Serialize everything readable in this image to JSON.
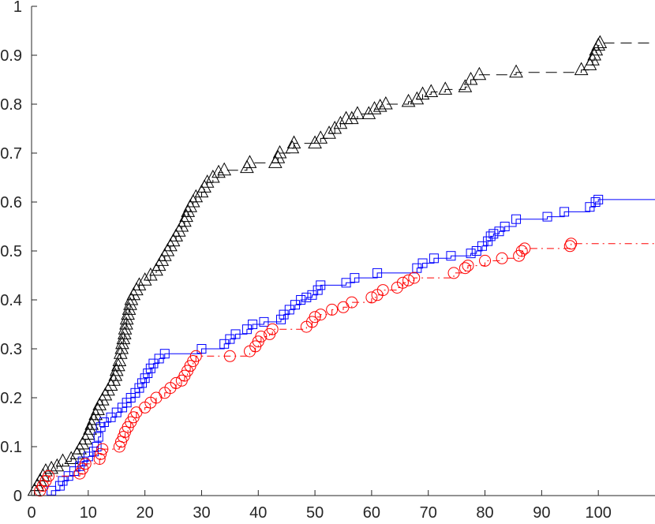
{
  "chart_data": {
    "type": "line",
    "style": "stairs",
    "title": "",
    "xlabel": "",
    "ylabel": "",
    "xlim": [
      0,
      110
    ],
    "ylim": [
      0,
      1
    ],
    "grid": false,
    "legend": "none",
    "xticks": [
      "0",
      "10",
      "20",
      "30",
      "40",
      "50",
      "60",
      "70",
      "80",
      "90",
      "100"
    ],
    "yticks": [
      "0",
      "0.1",
      "0.2",
      "0.3",
      "0.4",
      "0.5",
      "0.6",
      "0.7",
      "0.8",
      "0.9",
      "1"
    ],
    "series": [
      {
        "color": "#000000",
        "line_style": "dashed",
        "marker": "triangle",
        "end_x": 110,
        "points": [
          [
            0.5,
            0.01
          ],
          [
            1,
            0.02
          ],
          [
            1.5,
            0.03
          ],
          [
            2,
            0.04
          ],
          [
            2.5,
            0.05
          ],
          [
            3.5,
            0.055
          ],
          [
            4.5,
            0.06
          ],
          [
            5.5,
            0.07
          ],
          [
            7,
            0.075
          ],
          [
            8,
            0.085
          ],
          [
            8.5,
            0.095
          ],
          [
            9,
            0.105
          ],
          [
            9.5,
            0.115
          ],
          [
            10,
            0.125
          ],
          [
            10.3,
            0.135
          ],
          [
            10.6,
            0.145
          ],
          [
            11,
            0.155
          ],
          [
            11.3,
            0.165
          ],
          [
            11.7,
            0.175
          ],
          [
            12,
            0.185
          ],
          [
            12.5,
            0.195
          ],
          [
            13,
            0.205
          ],
          [
            13.5,
            0.215
          ],
          [
            14,
            0.225
          ],
          [
            14.5,
            0.235
          ],
          [
            14.8,
            0.245
          ],
          [
            15,
            0.255
          ],
          [
            15.3,
            0.265
          ],
          [
            15.5,
            0.275
          ],
          [
            15.7,
            0.29
          ],
          [
            15.9,
            0.3
          ],
          [
            16,
            0.31
          ],
          [
            16.2,
            0.32
          ],
          [
            16.4,
            0.33
          ],
          [
            16.5,
            0.34
          ],
          [
            16.7,
            0.35
          ],
          [
            16.8,
            0.36
          ],
          [
            17,
            0.37
          ],
          [
            17.2,
            0.38
          ],
          [
            17.4,
            0.39
          ],
          [
            17.6,
            0.4
          ],
          [
            18,
            0.41
          ],
          [
            18.5,
            0.42
          ],
          [
            19,
            0.43
          ],
          [
            20,
            0.44
          ],
          [
            21,
            0.45
          ],
          [
            22,
            0.46
          ],
          [
            22.5,
            0.47
          ],
          [
            23,
            0.48
          ],
          [
            23.5,
            0.49
          ],
          [
            24,
            0.5
          ],
          [
            24.5,
            0.51
          ],
          [
            25,
            0.52
          ],
          [
            25.5,
            0.53
          ],
          [
            26,
            0.54
          ],
          [
            26.5,
            0.55
          ],
          [
            27,
            0.56
          ],
          [
            27.3,
            0.57
          ],
          [
            27.6,
            0.58
          ],
          [
            28,
            0.59
          ],
          [
            28.5,
            0.6
          ],
          [
            29,
            0.61
          ],
          [
            30,
            0.62
          ],
          [
            30.5,
            0.63
          ],
          [
            31,
            0.64
          ],
          [
            32,
            0.65
          ],
          [
            33,
            0.66
          ],
          [
            34,
            0.665
          ],
          [
            38,
            0.67
          ],
          [
            38.5,
            0.68
          ],
          [
            43,
            0.68
          ],
          [
            43.5,
            0.69
          ],
          [
            43.8,
            0.7
          ],
          [
            46,
            0.71
          ],
          [
            46.3,
            0.72
          ],
          [
            50,
            0.72
          ],
          [
            51,
            0.73
          ],
          [
            52.5,
            0.74
          ],
          [
            53.5,
            0.75
          ],
          [
            54.5,
            0.76
          ],
          [
            55.5,
            0.77
          ],
          [
            56.5,
            0.77
          ],
          [
            57.5,
            0.78
          ],
          [
            59.5,
            0.78
          ],
          [
            60.5,
            0.79
          ],
          [
            61.5,
            0.795
          ],
          [
            62.5,
            0.8
          ],
          [
            66.5,
            0.805
          ],
          [
            68,
            0.81
          ],
          [
            69,
            0.82
          ],
          [
            70.5,
            0.825
          ],
          [
            73,
            0.83
          ],
          [
            76.5,
            0.835
          ],
          [
            77.5,
            0.85
          ],
          [
            79,
            0.86
          ],
          [
            85.5,
            0.865
          ],
          [
            97,
            0.87
          ],
          [
            98.5,
            0.88
          ],
          [
            99,
            0.89
          ],
          [
            99.3,
            0.9
          ],
          [
            99.6,
            0.91
          ],
          [
            100,
            0.92
          ],
          [
            100.3,
            0.925
          ]
        ]
      },
      {
        "color": "#0000ff",
        "line_style": "solid",
        "marker": "square",
        "end_x": 110,
        "points": [
          [
            3.5,
            0.01
          ],
          [
            5,
            0.02
          ],
          [
            5.5,
            0.03
          ],
          [
            6.5,
            0.04
          ],
          [
            7.5,
            0.05
          ],
          [
            8.5,
            0.06
          ],
          [
            9,
            0.07
          ],
          [
            10,
            0.08
          ],
          [
            11,
            0.09
          ],
          [
            11.5,
            0.1
          ],
          [
            11.8,
            0.12
          ],
          [
            12.2,
            0.14
          ],
          [
            12.8,
            0.15
          ],
          [
            14,
            0.16
          ],
          [
            15,
            0.17
          ],
          [
            16,
            0.18
          ],
          [
            16.8,
            0.19
          ],
          [
            17.5,
            0.2
          ],
          [
            18.3,
            0.21
          ],
          [
            19,
            0.22
          ],
          [
            19.5,
            0.23
          ],
          [
            20,
            0.24
          ],
          [
            20.5,
            0.25
          ],
          [
            21,
            0.26
          ],
          [
            21.5,
            0.27
          ],
          [
            22.5,
            0.28
          ],
          [
            23.5,
            0.29
          ],
          [
            30,
            0.3
          ],
          [
            34,
            0.31
          ],
          [
            35,
            0.32
          ],
          [
            36,
            0.33
          ],
          [
            38,
            0.34
          ],
          [
            39,
            0.35
          ],
          [
            41,
            0.355
          ],
          [
            44,
            0.36
          ],
          [
            44.5,
            0.37
          ],
          [
            45.5,
            0.38
          ],
          [
            46.5,
            0.39
          ],
          [
            47.5,
            0.4
          ],
          [
            48.5,
            0.405
          ],
          [
            49.5,
            0.41
          ],
          [
            50.5,
            0.42
          ],
          [
            51,
            0.43
          ],
          [
            55.5,
            0.435
          ],
          [
            57,
            0.445
          ],
          [
            61,
            0.455
          ],
          [
            68,
            0.465
          ],
          [
            69,
            0.475
          ],
          [
            71,
            0.485
          ],
          [
            74,
            0.49
          ],
          [
            77.5,
            0.495
          ],
          [
            78.5,
            0.5
          ],
          [
            79.5,
            0.51
          ],
          [
            80.5,
            0.52
          ],
          [
            81,
            0.53
          ],
          [
            81.5,
            0.535
          ],
          [
            82.5,
            0.54
          ],
          [
            83.5,
            0.55
          ],
          [
            85.5,
            0.565
          ],
          [
            91,
            0.57
          ],
          [
            94,
            0.58
          ],
          [
            98.5,
            0.59
          ],
          [
            99.5,
            0.6
          ],
          [
            100,
            0.605
          ]
        ]
      },
      {
        "color": "#ff0000",
        "line_style": "dash-dot",
        "marker": "circle",
        "end_x": 110,
        "points": [
          [
            1.5,
            0.01
          ],
          [
            2,
            0.02
          ],
          [
            2.5,
            0.03
          ],
          [
            3,
            0.04
          ],
          [
            8.5,
            0.045
          ],
          [
            9,
            0.055
          ],
          [
            9.5,
            0.065
          ],
          [
            12,
            0.075
          ],
          [
            12.2,
            0.085
          ],
          [
            12.5,
            0.095
          ],
          [
            15.5,
            0.1
          ],
          [
            15.8,
            0.11
          ],
          [
            16.2,
            0.12
          ],
          [
            16.5,
            0.13
          ],
          [
            17,
            0.14
          ],
          [
            17.5,
            0.15
          ],
          [
            18,
            0.16
          ],
          [
            18.5,
            0.17
          ],
          [
            20,
            0.18
          ],
          [
            21,
            0.19
          ],
          [
            22,
            0.2
          ],
          [
            23.5,
            0.21
          ],
          [
            24.5,
            0.22
          ],
          [
            25.5,
            0.23
          ],
          [
            26.5,
            0.235
          ],
          [
            27,
            0.245
          ],
          [
            27.5,
            0.255
          ],
          [
            28,
            0.265
          ],
          [
            28.5,
            0.275
          ],
          [
            29,
            0.285
          ],
          [
            35,
            0.285
          ],
          [
            38.5,
            0.295
          ],
          [
            39.5,
            0.305
          ],
          [
            40,
            0.315
          ],
          [
            40.5,
            0.325
          ],
          [
            42,
            0.33
          ],
          [
            42.5,
            0.34
          ],
          [
            48.5,
            0.345
          ],
          [
            49.5,
            0.355
          ],
          [
            50,
            0.365
          ],
          [
            51,
            0.37
          ],
          [
            53,
            0.38
          ],
          [
            55,
            0.385
          ],
          [
            56.5,
            0.395
          ],
          [
            60,
            0.405
          ],
          [
            61,
            0.41
          ],
          [
            62,
            0.42
          ],
          [
            64.5,
            0.425
          ],
          [
            65.5,
            0.435
          ],
          [
            66.5,
            0.44
          ],
          [
            67.5,
            0.445
          ],
          [
            74.5,
            0.455
          ],
          [
            76.5,
            0.465
          ],
          [
            77,
            0.47
          ],
          [
            80,
            0.48
          ],
          [
            83,
            0.485
          ],
          [
            86,
            0.49
          ],
          [
            86.5,
            0.5
          ],
          [
            87,
            0.505
          ],
          [
            95,
            0.51
          ],
          [
            95.2,
            0.515
          ]
        ]
      }
    ]
  }
}
